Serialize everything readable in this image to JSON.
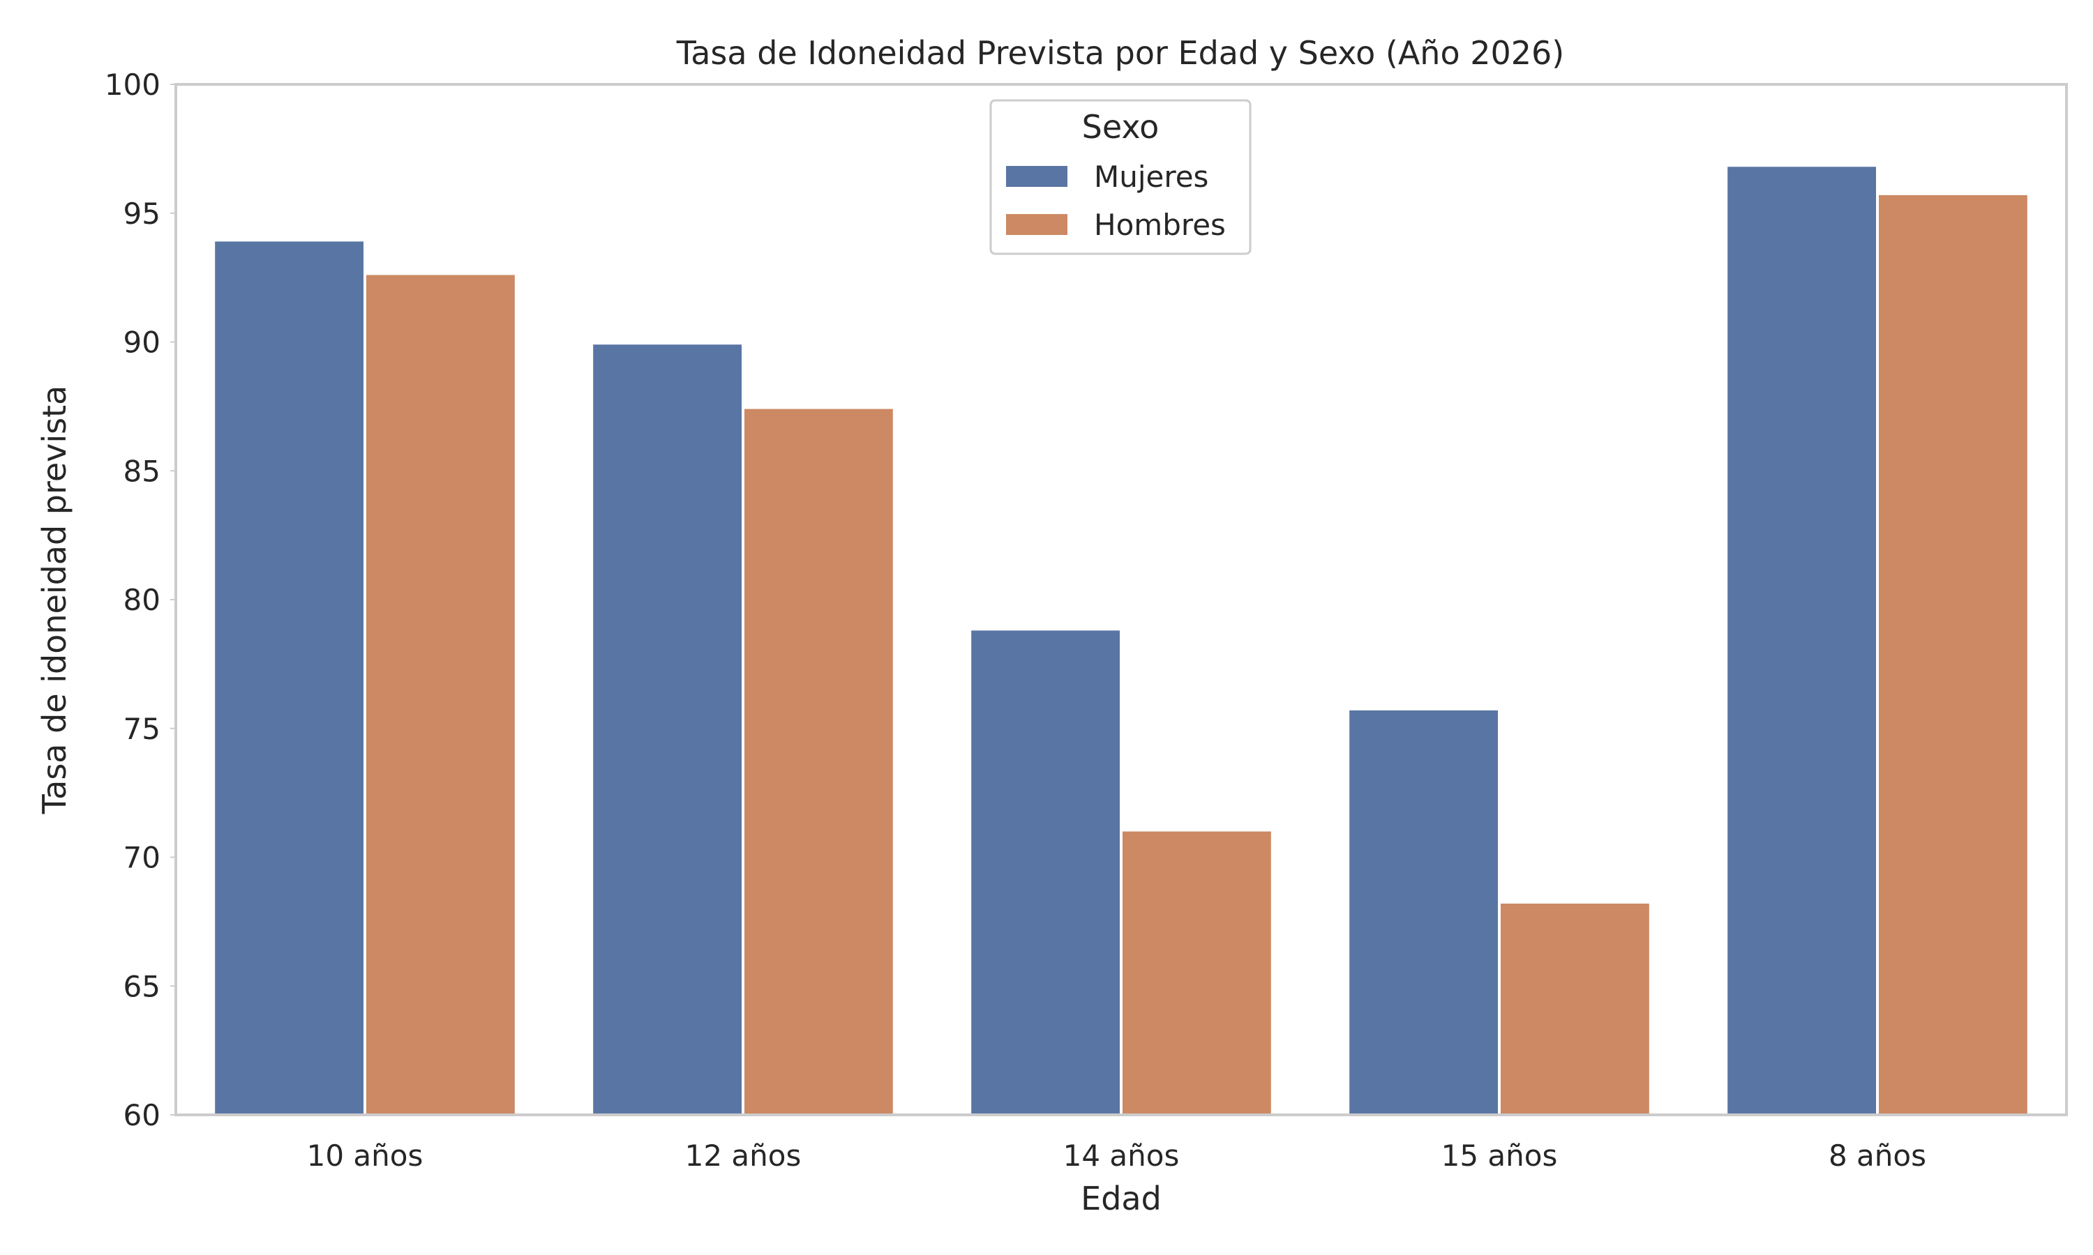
{
  "chart_data": {
    "type": "bar",
    "title": "Tasa de Idoneidad Prevista por Edad y Sexo (Año 2026)",
    "xlabel": "Edad",
    "ylabel": "Tasa de idoneidad prevista",
    "categories": [
      "10 años",
      "12 años",
      "14 años",
      "15 años",
      "8 años"
    ],
    "series": [
      {
        "name": "Mujeres",
        "values": [
          93.9,
          89.9,
          78.8,
          75.7,
          96.8
        ],
        "color": "#5975a4"
      },
      {
        "name": "Hombres",
        "values": [
          92.6,
          87.4,
          71.0,
          68.2,
          95.7
        ],
        "color": "#cc8963"
      }
    ],
    "ylim": [
      60,
      100
    ],
    "yticks": [
      60,
      65,
      70,
      75,
      80,
      85,
      90,
      95,
      100
    ],
    "grid": false,
    "legend": {
      "title": "Sexo",
      "placement": "top-center"
    }
  }
}
